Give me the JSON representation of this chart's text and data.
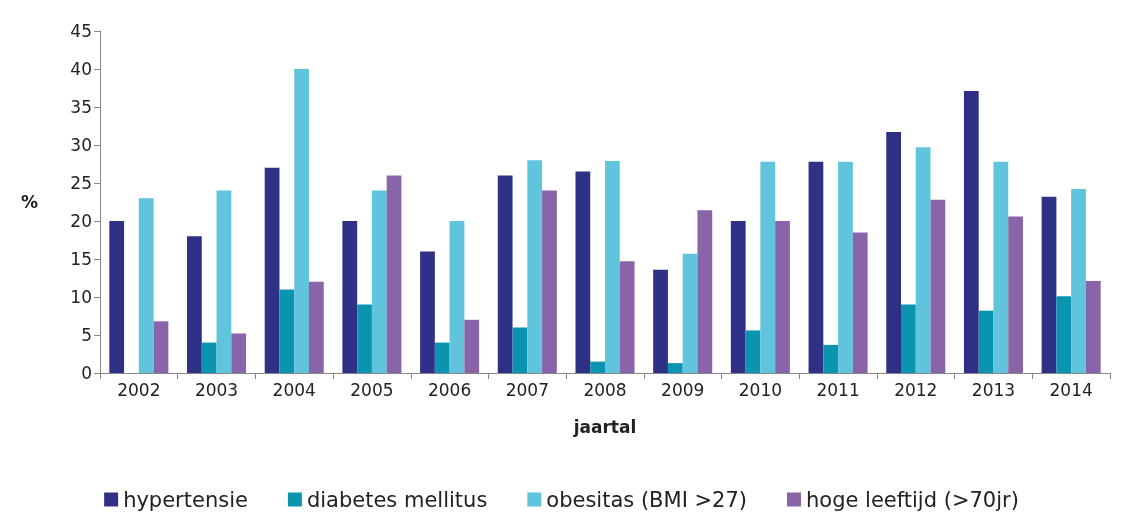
{
  "chart_data": {
    "type": "bar",
    "xlabel": "jaartal",
    "ylabel": "%",
    "categories": [
      "2002",
      "2003",
      "2004",
      "2005",
      "2006",
      "2007",
      "2008",
      "2009",
      "2010",
      "2011",
      "2012",
      "2013",
      "2014"
    ],
    "series": [
      {
        "name": "hypertensie",
        "color": "#2e3185",
        "values": [
          20,
          18,
          27,
          20,
          16,
          26,
          26.5,
          13.6,
          20,
          27.8,
          31.7,
          37.1,
          23.2
        ]
      },
      {
        "name": "diabetes mellitus",
        "color": "#0b94b0",
        "values": [
          0,
          4,
          11,
          9,
          4,
          6,
          1.5,
          1.3,
          5.6,
          3.7,
          9,
          8.2,
          10.1
        ]
      },
      {
        "name": "obesitas (BMI >27)",
        "color": "#5fc4dc",
        "values": [
          23,
          24,
          40,
          24,
          20,
          28,
          27.9,
          15.7,
          27.8,
          27.8,
          29.7,
          27.8,
          24.2
        ]
      },
      {
        "name": "hoge leeftijd (>70jr)",
        "color": "#8a64a8",
        "values": [
          6.8,
          5.2,
          12,
          26,
          7,
          24,
          14.7,
          21.4,
          20,
          18.5,
          22.8,
          20.6,
          12.1
        ]
      }
    ],
    "ylim": [
      0,
      45
    ],
    "yticks": [
      0,
      5,
      10,
      15,
      20,
      25,
      30,
      35,
      40,
      45
    ],
    "grid": false,
    "legend": "bottom"
  }
}
